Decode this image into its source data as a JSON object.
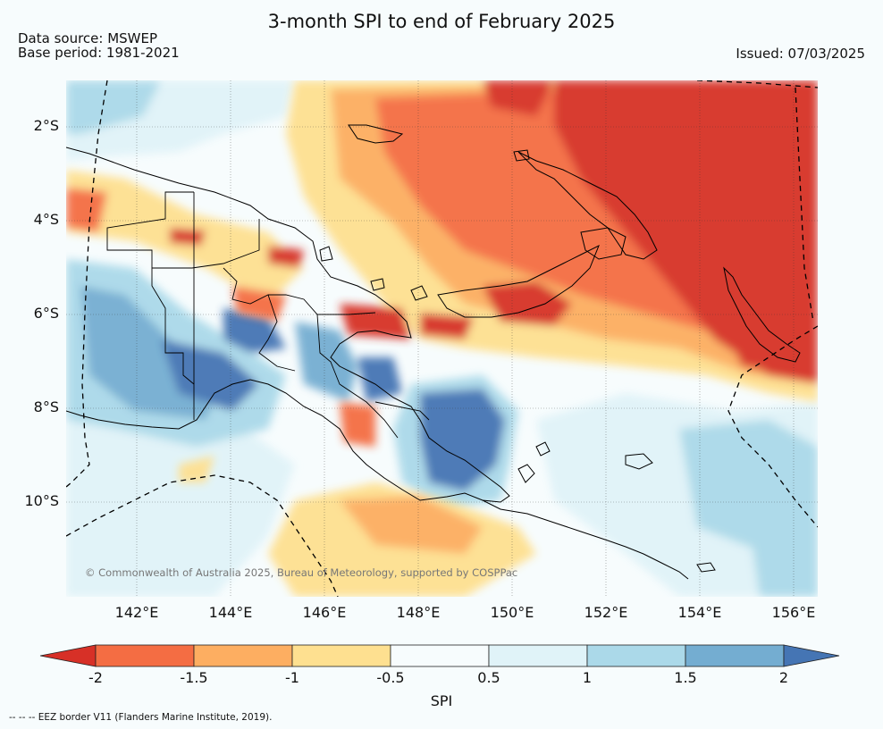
{
  "title": "3-month SPI to end of February 2025",
  "data_source": "Data source: MSWEP",
  "base_period": "Base period: 1981-2021",
  "issued": "Issued: 07/03/2025",
  "copyright": "© Commonwealth of Australia 2025, Bureau of Meteorology, supported by COSPPac",
  "lat_labels": [
    "2°S",
    "4°S",
    "6°S",
    "8°S",
    "10°S"
  ],
  "lon_labels": [
    "142°E",
    "144°E",
    "146°E",
    "148°E",
    "150°E",
    "152°E",
    "154°E",
    "156°E"
  ],
  "colorbar": {
    "ticks": [
      "-2",
      "-1.5",
      "-1",
      "-0.5",
      "0.5",
      "1",
      "1.5",
      "2"
    ],
    "label": "SPI",
    "colors": [
      "#d73027",
      "#f46d43",
      "#fdae61",
      "#fee090",
      "#f7fcfd",
      "#e0f3f8",
      "#abd9e9",
      "#74add1",
      "#4575b4"
    ]
  },
  "eez_note": "--  --  -- EEZ border V11 (Flanders Marine Institute, 2019)."
}
